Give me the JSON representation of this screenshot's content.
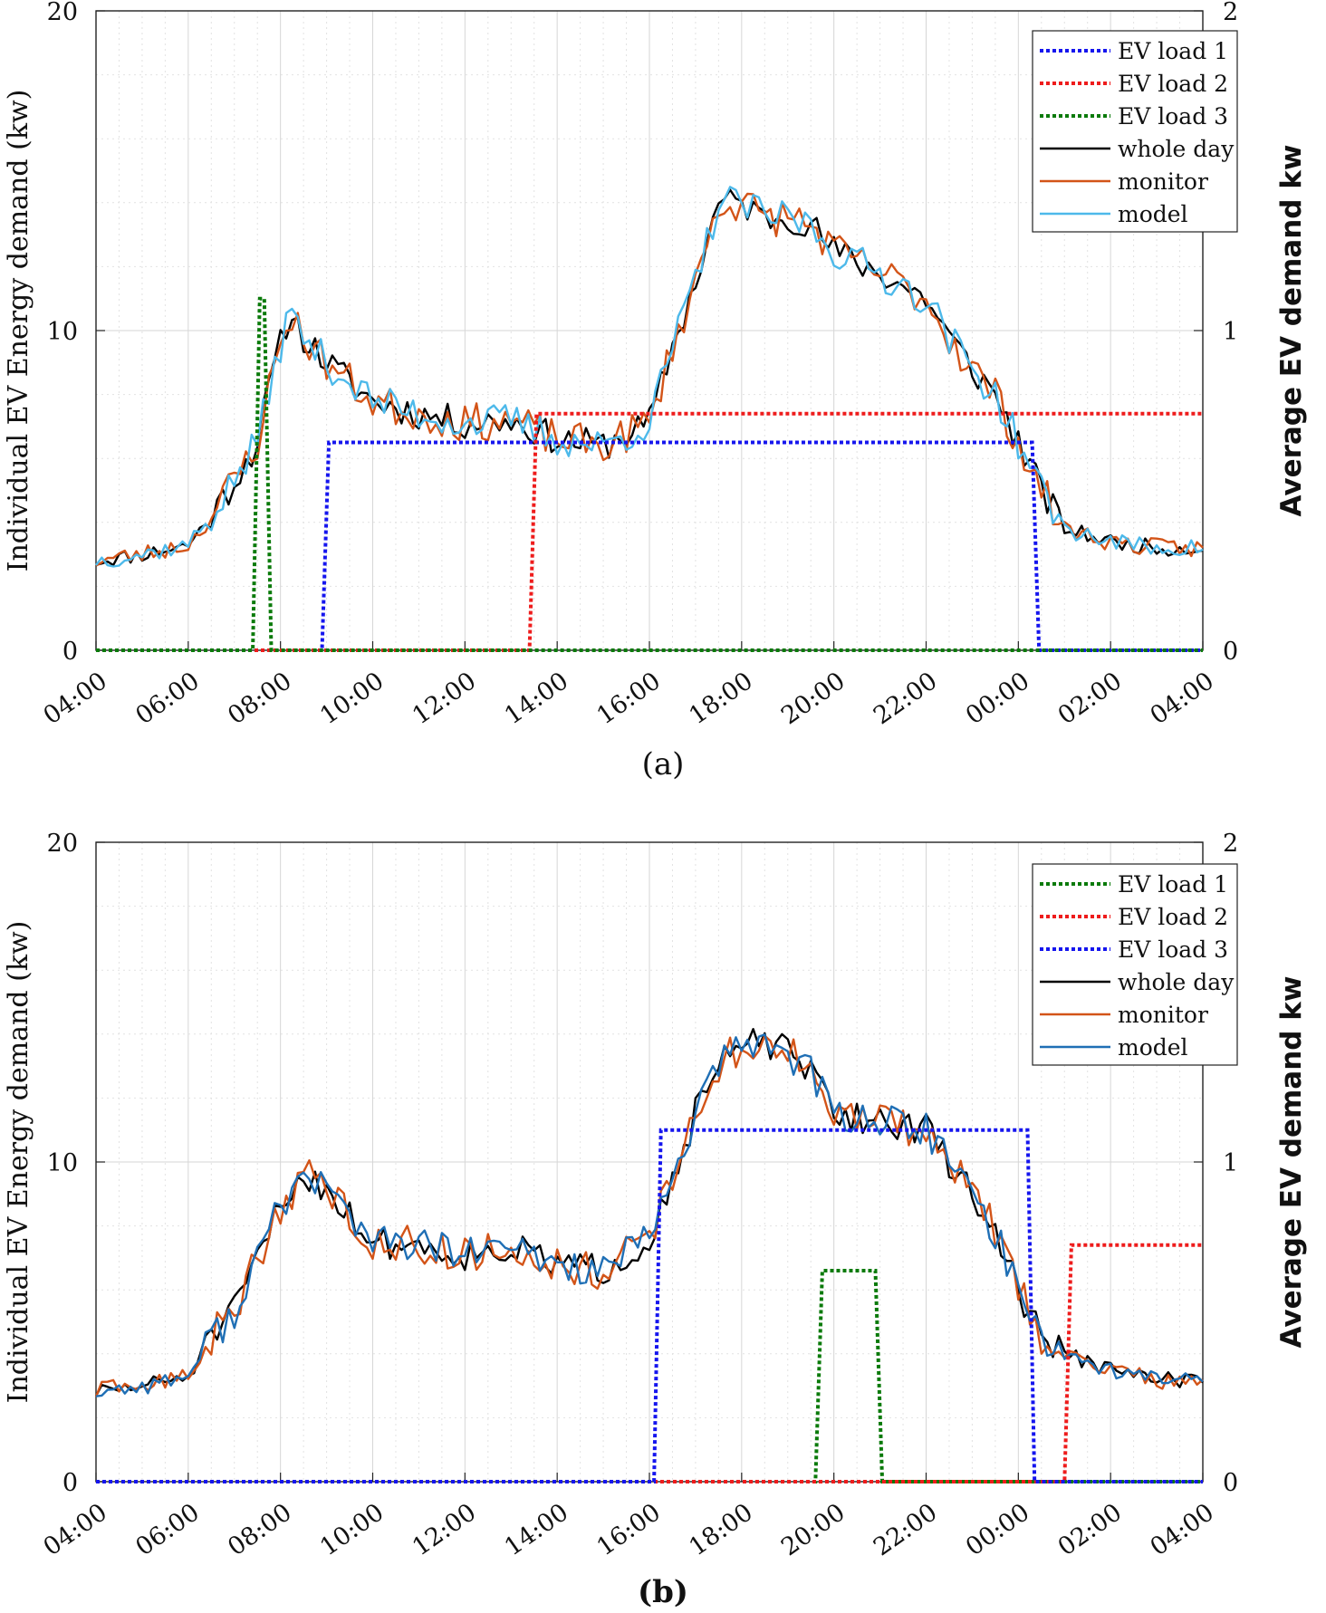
{
  "chart_data": [
    {
      "type": "line",
      "caption": "(a)",
      "ylabel": "Individual EV Energy demand (kw)",
      "ylabel_right": "Average EV demand kw",
      "ylim": [
        0,
        20
      ],
      "ylim_right": [
        0,
        2
      ],
      "yticks": [
        "0",
        "10",
        "20"
      ],
      "yticks_right": [
        "0",
        "1",
        "2"
      ],
      "xlim": [
        4,
        28
      ],
      "xtick_labels": [
        "04:00",
        "06:00",
        "08:00",
        "10:00",
        "12:00",
        "14:00",
        "16:00",
        "18:00",
        "20:00",
        "22:00",
        "00:00",
        "02:00",
        "04:00"
      ],
      "grid": true,
      "legend_position": "top-right",
      "legend": [
        "EV load 1",
        "EV load 2",
        "EV load 3",
        "whole day",
        "monitor",
        "model"
      ],
      "colors": {
        "ev1": "#1515ee",
        "ev2": "#ee1c1c",
        "ev3": "#0a7a0a",
        "whole": "#000000",
        "monitor": "#d35418",
        "model": "#4db9ea"
      },
      "step_series": [
        {
          "name": "EV load 1",
          "points": [
            [
              4,
              0
            ],
            [
              8.9,
              0
            ],
            [
              9.05,
              6.5
            ],
            [
              24.3,
              6.5
            ],
            [
              24.45,
              0
            ],
            [
              28,
              0
            ]
          ]
        },
        {
          "name": "EV load 2",
          "points": [
            [
              4,
              0
            ],
            [
              13.4,
              0
            ],
            [
              13.55,
              7.4
            ],
            [
              28,
              7.4
            ]
          ]
        },
        {
          "name": "EV load 3",
          "points": [
            [
              4,
              0
            ],
            [
              7.4,
              0
            ],
            [
              7.55,
              11.0
            ],
            [
              7.65,
              11.0
            ],
            [
              7.8,
              0
            ],
            [
              28,
              0
            ]
          ]
        }
      ],
      "noisy_series": [
        {
          "name": "whole day",
          "seed": 11,
          "noise": 0.5,
          "key": [
            [
              4.0,
              2.8
            ],
            [
              5.0,
              3.0
            ],
            [
              6.0,
              3.3
            ],
            [
              6.5,
              4.2
            ],
            [
              7.0,
              5.3
            ],
            [
              7.5,
              6.5
            ],
            [
              7.8,
              8.5
            ],
            [
              8.2,
              10.6
            ],
            [
              8.5,
              9.8
            ],
            [
              9.0,
              9.0
            ],
            [
              10.0,
              7.8
            ],
            [
              11.0,
              7.4
            ],
            [
              12.0,
              7.1
            ],
            [
              13.0,
              7.2
            ],
            [
              14.0,
              6.6
            ],
            [
              15.0,
              6.4
            ],
            [
              16.0,
              7.1
            ],
            [
              16.5,
              9.5
            ],
            [
              17.0,
              11.5
            ],
            [
              17.5,
              14.0
            ],
            [
              18.0,
              14.0
            ],
            [
              18.5,
              13.5
            ],
            [
              19.0,
              13.6
            ],
            [
              19.5,
              13.3
            ],
            [
              20.0,
              12.5
            ],
            [
              21.0,
              11.8
            ],
            [
              22.0,
              11.0
            ],
            [
              22.5,
              9.8
            ],
            [
              23.0,
              8.8
            ],
            [
              23.5,
              8.0
            ],
            [
              24.0,
              6.5
            ],
            [
              24.5,
              5.0
            ],
            [
              25.0,
              3.8
            ],
            [
              26.0,
              3.4
            ],
            [
              27.0,
              3.2
            ],
            [
              28.0,
              3.2
            ]
          ]
        },
        {
          "name": "monitor",
          "seed": 23,
          "noise": 0.6,
          "key": [
            [
              4.0,
              2.8
            ],
            [
              5.0,
              3.0
            ],
            [
              6.0,
              3.3
            ],
            [
              6.5,
              4.2
            ],
            [
              7.0,
              5.3
            ],
            [
              7.5,
              6.5
            ],
            [
              7.8,
              8.5
            ],
            [
              8.2,
              10.6
            ],
            [
              8.5,
              9.8
            ],
            [
              9.0,
              9.0
            ],
            [
              10.0,
              7.8
            ],
            [
              11.0,
              7.4
            ],
            [
              12.0,
              7.1
            ],
            [
              13.0,
              7.2
            ],
            [
              14.0,
              6.6
            ],
            [
              15.0,
              6.4
            ],
            [
              16.0,
              7.1
            ],
            [
              16.5,
              9.5
            ],
            [
              17.0,
              11.5
            ],
            [
              17.5,
              14.0
            ],
            [
              18.0,
              14.0
            ],
            [
              18.5,
              13.5
            ],
            [
              19.0,
              13.6
            ],
            [
              19.5,
              13.3
            ],
            [
              20.0,
              12.5
            ],
            [
              21.0,
              11.8
            ],
            [
              22.0,
              11.0
            ],
            [
              22.5,
              9.8
            ],
            [
              23.0,
              8.8
            ],
            [
              23.5,
              8.0
            ],
            [
              24.0,
              6.5
            ],
            [
              24.5,
              5.0
            ],
            [
              25.0,
              3.8
            ],
            [
              26.0,
              3.4
            ],
            [
              27.0,
              3.2
            ],
            [
              28.0,
              3.2
            ]
          ]
        },
        {
          "name": "model",
          "seed": 37,
          "noise": 0.55,
          "key": [
            [
              4.0,
              2.8
            ],
            [
              5.0,
              3.0
            ],
            [
              6.0,
              3.3
            ],
            [
              6.5,
              4.2
            ],
            [
              7.0,
              5.3
            ],
            [
              7.5,
              6.5
            ],
            [
              7.8,
              8.5
            ],
            [
              8.2,
              10.6
            ],
            [
              8.5,
              9.8
            ],
            [
              9.0,
              9.0
            ],
            [
              10.0,
              7.8
            ],
            [
              11.0,
              7.4
            ],
            [
              12.0,
              7.1
            ],
            [
              13.0,
              7.2
            ],
            [
              14.0,
              6.6
            ],
            [
              15.0,
              6.4
            ],
            [
              16.0,
              7.1
            ],
            [
              16.5,
              9.5
            ],
            [
              17.0,
              11.5
            ],
            [
              17.5,
              14.0
            ],
            [
              18.0,
              14.0
            ],
            [
              18.5,
              13.5
            ],
            [
              19.0,
              13.6
            ],
            [
              19.5,
              13.3
            ],
            [
              20.0,
              12.5
            ],
            [
              21.0,
              11.8
            ],
            [
              22.0,
              11.0
            ],
            [
              22.5,
              9.8
            ],
            [
              23.0,
              8.8
            ],
            [
              23.5,
              8.0
            ],
            [
              24.0,
              6.5
            ],
            [
              24.5,
              5.0
            ],
            [
              25.0,
              3.8
            ],
            [
              26.0,
              3.4
            ],
            [
              27.0,
              3.2
            ],
            [
              28.0,
              3.2
            ]
          ]
        }
      ]
    },
    {
      "type": "line",
      "caption": "(b)",
      "ylabel": "Individual EV Energy demand (kw)",
      "ylabel_right": "Average EV demand kw",
      "ylim": [
        0,
        20
      ],
      "ylim_right": [
        0,
        2
      ],
      "yticks": [
        "0",
        "10",
        "20"
      ],
      "yticks_right": [
        "0",
        "1",
        "2"
      ],
      "xlim": [
        4,
        28
      ],
      "xtick_labels": [
        "04:00",
        "06:00",
        "08:00",
        "10:00",
        "12:00",
        "14:00",
        "16:00",
        "18:00",
        "20:00",
        "22:00",
        "00:00",
        "02:00",
        "04:00"
      ],
      "grid": true,
      "legend_position": "top-right",
      "legend": [
        "EV load 1",
        "EV load 2",
        "EV load 3",
        "whole day",
        "monitor",
        "model"
      ],
      "colors": {
        "ev1": "#0a7a0a",
        "ev2": "#ee1c1c",
        "ev3": "#1515ee",
        "whole": "#000000",
        "monitor": "#d35418",
        "model": "#1f6fb5"
      },
      "step_series": [
        {
          "name": "EV load 1",
          "points": [
            [
              4,
              0
            ],
            [
              19.6,
              0
            ],
            [
              19.75,
              6.6
            ],
            [
              20.9,
              6.6
            ],
            [
              21.05,
              0
            ],
            [
              28,
              0
            ]
          ]
        },
        {
          "name": "EV load 2",
          "points": [
            [
              4,
              0
            ],
            [
              25.0,
              0
            ],
            [
              25.15,
              7.4
            ],
            [
              28,
              7.4
            ]
          ]
        },
        {
          "name": "EV load 3",
          "points": [
            [
              4,
              0
            ],
            [
              16.1,
              0
            ],
            [
              16.25,
              11.0
            ],
            [
              24.2,
              11.0
            ],
            [
              24.35,
              0
            ],
            [
              28,
              0
            ]
          ]
        }
      ],
      "noisy_series": [
        {
          "name": "whole day",
          "seed": 51,
          "noise": 0.5,
          "key": [
            [
              4.0,
              2.8
            ],
            [
              5.0,
              3.0
            ],
            [
              6.0,
              3.3
            ],
            [
              6.5,
              4.5
            ],
            [
              7.0,
              5.3
            ],
            [
              7.5,
              7.0
            ],
            [
              8.0,
              8.6
            ],
            [
              8.5,
              9.6
            ],
            [
              9.0,
              9.2
            ],
            [
              10.0,
              7.5
            ],
            [
              11.0,
              7.4
            ],
            [
              12.0,
              7.1
            ],
            [
              13.0,
              7.3
            ],
            [
              14.0,
              6.8
            ],
            [
              15.0,
              6.6
            ],
            [
              16.0,
              7.6
            ],
            [
              16.5,
              9.5
            ],
            [
              17.0,
              11.5
            ],
            [
              17.5,
              13.0
            ],
            [
              18.0,
              13.6
            ],
            [
              18.5,
              13.8
            ],
            [
              19.0,
              13.4
            ],
            [
              19.5,
              12.8
            ],
            [
              20.0,
              11.5
            ],
            [
              21.0,
              11.3
            ],
            [
              22.0,
              11.0
            ],
            [
              22.5,
              10.0
            ],
            [
              23.0,
              9.0
            ],
            [
              23.5,
              7.8
            ],
            [
              24.0,
              6.0
            ],
            [
              24.5,
              4.6
            ],
            [
              25.0,
              4.0
            ],
            [
              26.0,
              3.5
            ],
            [
              27.0,
              3.2
            ],
            [
              28.0,
              3.2
            ]
          ]
        },
        {
          "name": "monitor",
          "seed": 63,
          "noise": 0.6,
          "key": [
            [
              4.0,
              2.8
            ],
            [
              5.0,
              3.0
            ],
            [
              6.0,
              3.3
            ],
            [
              6.5,
              4.5
            ],
            [
              7.0,
              5.3
            ],
            [
              7.5,
              7.0
            ],
            [
              8.0,
              8.6
            ],
            [
              8.5,
              9.6
            ],
            [
              9.0,
              9.2
            ],
            [
              10.0,
              7.5
            ],
            [
              11.0,
              7.4
            ],
            [
              12.0,
              7.1
            ],
            [
              13.0,
              7.3
            ],
            [
              14.0,
              6.8
            ],
            [
              15.0,
              6.6
            ],
            [
              16.0,
              7.6
            ],
            [
              16.5,
              9.5
            ],
            [
              17.0,
              11.5
            ],
            [
              17.5,
              13.0
            ],
            [
              18.0,
              13.6
            ],
            [
              18.5,
              13.8
            ],
            [
              19.0,
              13.4
            ],
            [
              19.5,
              12.8
            ],
            [
              20.0,
              11.5
            ],
            [
              21.0,
              11.3
            ],
            [
              22.0,
              11.0
            ],
            [
              22.5,
              10.0
            ],
            [
              23.0,
              9.0
            ],
            [
              23.5,
              7.8
            ],
            [
              24.0,
              6.0
            ],
            [
              24.5,
              4.6
            ],
            [
              25.0,
              4.0
            ],
            [
              26.0,
              3.5
            ],
            [
              27.0,
              3.2
            ],
            [
              28.0,
              3.2
            ]
          ]
        },
        {
          "name": "model",
          "seed": 77,
          "noise": 0.55,
          "key": [
            [
              4.0,
              2.8
            ],
            [
              5.0,
              3.0
            ],
            [
              6.0,
              3.3
            ],
            [
              6.5,
              4.5
            ],
            [
              7.0,
              5.3
            ],
            [
              7.5,
              7.0
            ],
            [
              8.0,
              8.6
            ],
            [
              8.5,
              9.6
            ],
            [
              9.0,
              9.2
            ],
            [
              10.0,
              7.5
            ],
            [
              11.0,
              7.4
            ],
            [
              12.0,
              7.1
            ],
            [
              13.0,
              7.3
            ],
            [
              14.0,
              6.8
            ],
            [
              15.0,
              6.6
            ],
            [
              16.0,
              7.6
            ],
            [
              16.5,
              9.5
            ],
            [
              17.0,
              11.5
            ],
            [
              17.5,
              13.0
            ],
            [
              18.0,
              13.6
            ],
            [
              18.5,
              13.8
            ],
            [
              19.0,
              13.4
            ],
            [
              19.5,
              12.8
            ],
            [
              20.0,
              11.5
            ],
            [
              21.0,
              11.3
            ],
            [
              22.0,
              11.0
            ],
            [
              22.5,
              10.0
            ],
            [
              23.0,
              9.0
            ],
            [
              23.5,
              7.8
            ],
            [
              24.0,
              6.0
            ],
            [
              24.5,
              4.6
            ],
            [
              25.0,
              4.0
            ],
            [
              26.0,
              3.5
            ],
            [
              27.0,
              3.2
            ],
            [
              28.0,
              3.2
            ]
          ]
        }
      ]
    }
  ]
}
